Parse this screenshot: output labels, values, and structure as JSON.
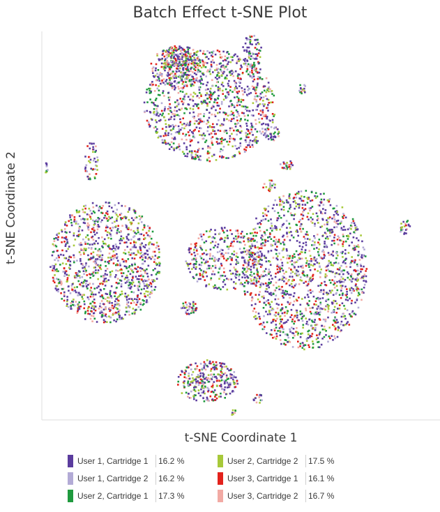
{
  "chart_data": {
    "type": "scatter",
    "title": "Batch Effect t-SNE Plot",
    "xlabel": "t-SNE Coordinate 1",
    "ylabel": "t-SNE Coordinate 2",
    "axis_ticks": "none",
    "grid": false,
    "legend_position": "bottom",
    "series": [
      {
        "name": "User 1, Cartridge 1",
        "percent": "16.2%",
        "color": "#5b3c9e"
      },
      {
        "name": "User 1, Cartridge 2",
        "percent": "16.2%",
        "color": "#b3abd6"
      },
      {
        "name": "User 2, Cartridge 1",
        "percent": "17.3%",
        "color": "#1f9a3e"
      },
      {
        "name": "User 2, Cartridge 2",
        "percent": "17.5%",
        "color": "#a7c93a"
      },
      {
        "name": "User 3, Cartridge 1",
        "percent": "16.1%",
        "color": "#e3221c"
      },
      {
        "name": "User 3, Cartridge 2",
        "percent": "16.7%",
        "color": "#f2aaa4"
      }
    ]
  },
  "legend": {
    "items": [
      {
        "label": "User 1, Cartridge 1",
        "pct": "16.2 %",
        "color": "#5b3c9e"
      },
      {
        "label": "User 1, Cartridge 2",
        "pct": "16.2 %",
        "color": "#b3abd6"
      },
      {
        "label": "User 2, Cartridge 1",
        "pct": "17.3 %",
        "color": "#1f9a3e"
      },
      {
        "label": "User 2, Cartridge 2",
        "pct": "17.5 %",
        "color": "#a7c93a"
      },
      {
        "label": "User 3, Cartridge 1",
        "pct": "16.1 %",
        "color": "#e3221c"
      },
      {
        "label": "User 3, Cartridge 2",
        "pct": "16.7 %",
        "color": "#f2aaa4"
      }
    ]
  }
}
